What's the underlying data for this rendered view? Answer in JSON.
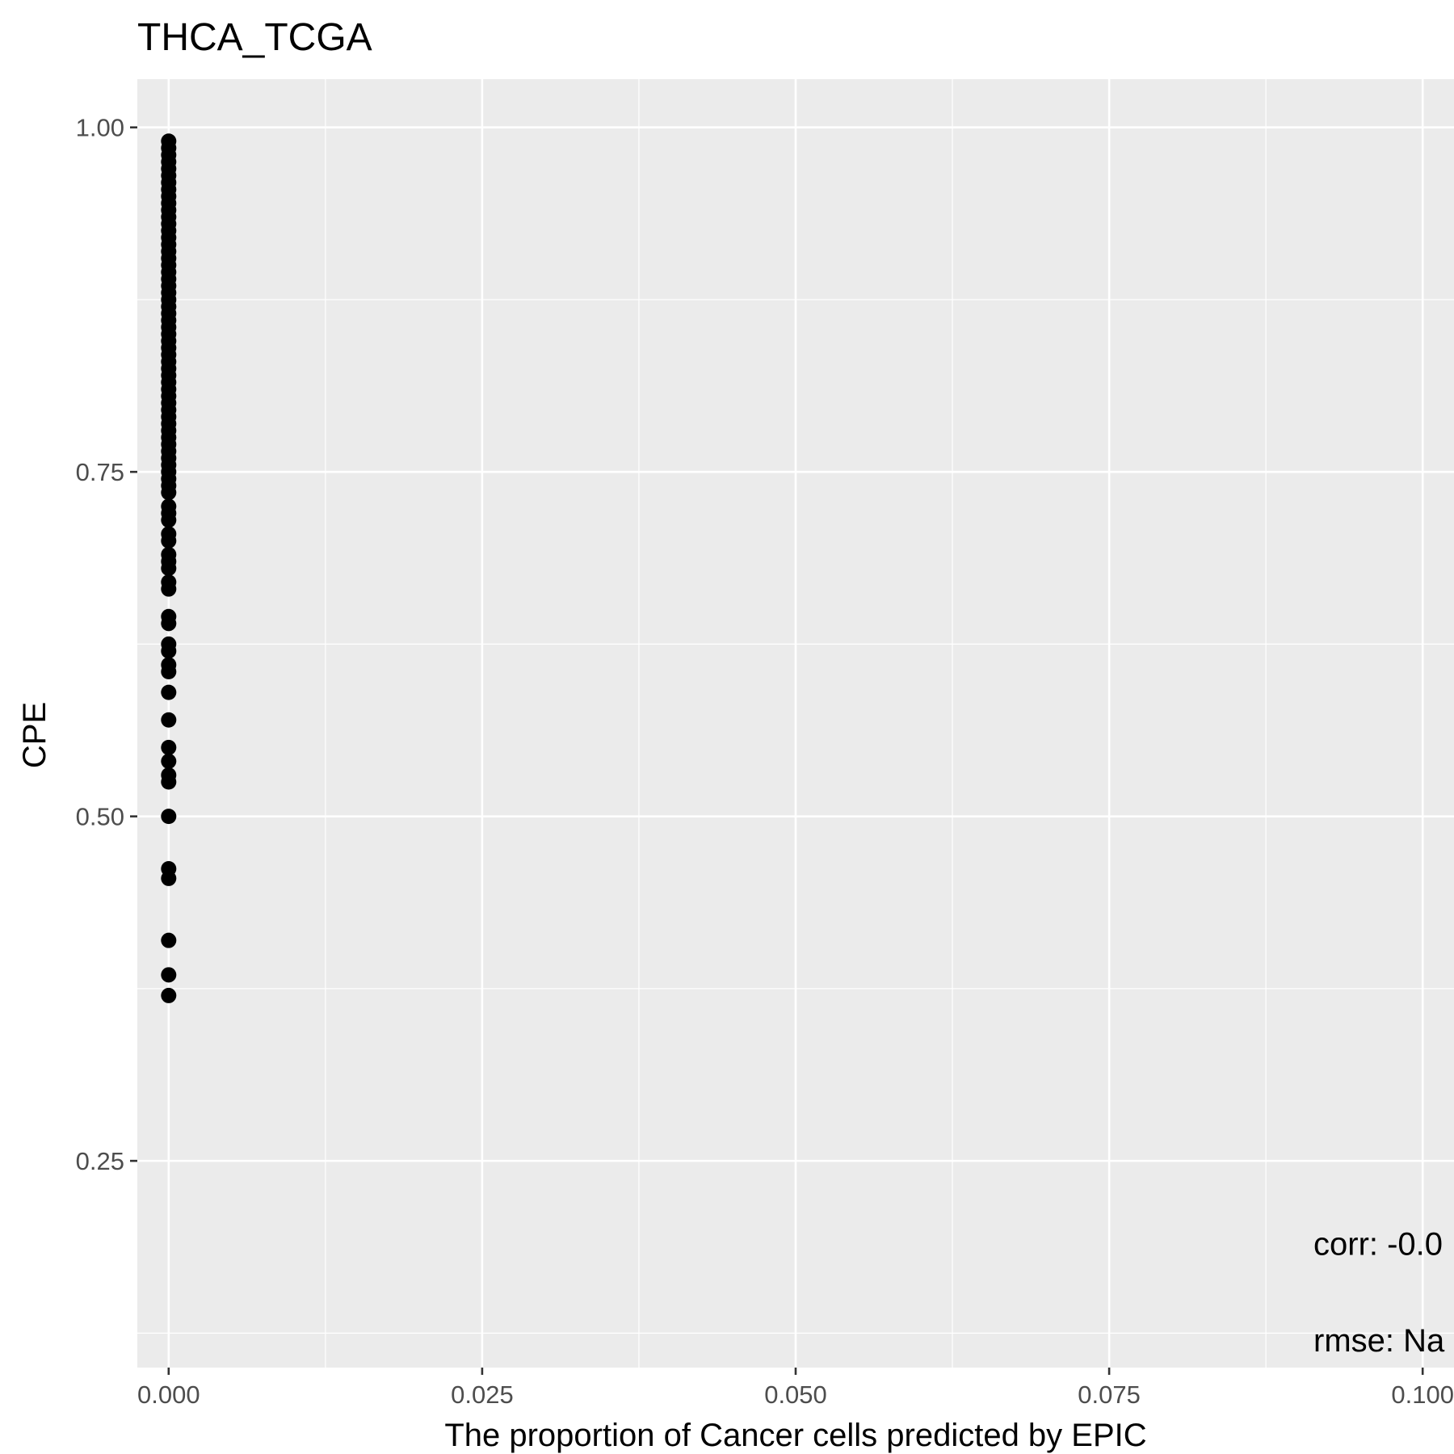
{
  "chart_data": {
    "type": "scatter",
    "title": "THCA_TCGA",
    "xlabel": "The proportion of Cancer cells predicted by EPIC",
    "ylabel": "CPE",
    "xlim": [
      -0.0025,
      0.1025
    ],
    "ylim": [
      0.1,
      1.035
    ],
    "x_ticks": [
      0,
      0.025,
      0.05,
      0.075,
      0.1
    ],
    "x_tick_labels": [
      "0.000",
      "0.025",
      "0.050",
      "0.075",
      "0.100"
    ],
    "y_ticks": [
      0.25,
      0.5,
      0.75,
      1.0
    ],
    "y_tick_labels": [
      "0.25",
      "0.50",
      "0.75",
      "1.00"
    ],
    "grid": true,
    "background": "#ebebeb",
    "point_color": "#000000",
    "annotations": [
      {
        "text": "corr: -0.0",
        "x": 0.1025,
        "y": 0.19
      },
      {
        "text": "rmse: Na",
        "x": 0.1025,
        "y": 0.12
      }
    ],
    "x": [
      0,
      0,
      0,
      0,
      0,
      0,
      0,
      0,
      0,
      0,
      0,
      0,
      0,
      0,
      0,
      0,
      0,
      0,
      0,
      0,
      0,
      0,
      0,
      0,
      0,
      0,
      0,
      0,
      0,
      0,
      0,
      0,
      0,
      0,
      0,
      0,
      0,
      0,
      0,
      0,
      0,
      0,
      0,
      0,
      0,
      0,
      0,
      0,
      0,
      0,
      0,
      0,
      0,
      0,
      0,
      0,
      0,
      0,
      0,
      0,
      0,
      0,
      0,
      0,
      0,
      0,
      0,
      0,
      0,
      0,
      0,
      0,
      0,
      0,
      0,
      0,
      0,
      0,
      0,
      0
    ],
    "y": [
      0.99,
      0.985,
      0.98,
      0.975,
      0.97,
      0.965,
      0.96,
      0.955,
      0.95,
      0.945,
      0.94,
      0.935,
      0.93,
      0.925,
      0.92,
      0.915,
      0.91,
      0.905,
      0.9,
      0.895,
      0.89,
      0.885,
      0.88,
      0.875,
      0.87,
      0.865,
      0.86,
      0.855,
      0.85,
      0.845,
      0.84,
      0.835,
      0.83,
      0.825,
      0.82,
      0.815,
      0.81,
      0.805,
      0.8,
      0.795,
      0.79,
      0.785,
      0.78,
      0.775,
      0.77,
      0.765,
      0.76,
      0.755,
      0.75,
      0.745,
      0.74,
      0.735,
      0.725,
      0.72,
      0.715,
      0.705,
      0.7,
      0.69,
      0.685,
      0.68,
      0.67,
      0.665,
      0.645,
      0.64,
      0.625,
      0.62,
      0.61,
      0.605,
      0.59,
      0.57,
      0.55,
      0.54,
      0.53,
      0.525,
      0.5,
      0.462,
      0.455,
      0.41,
      0.385,
      0.37
    ]
  }
}
